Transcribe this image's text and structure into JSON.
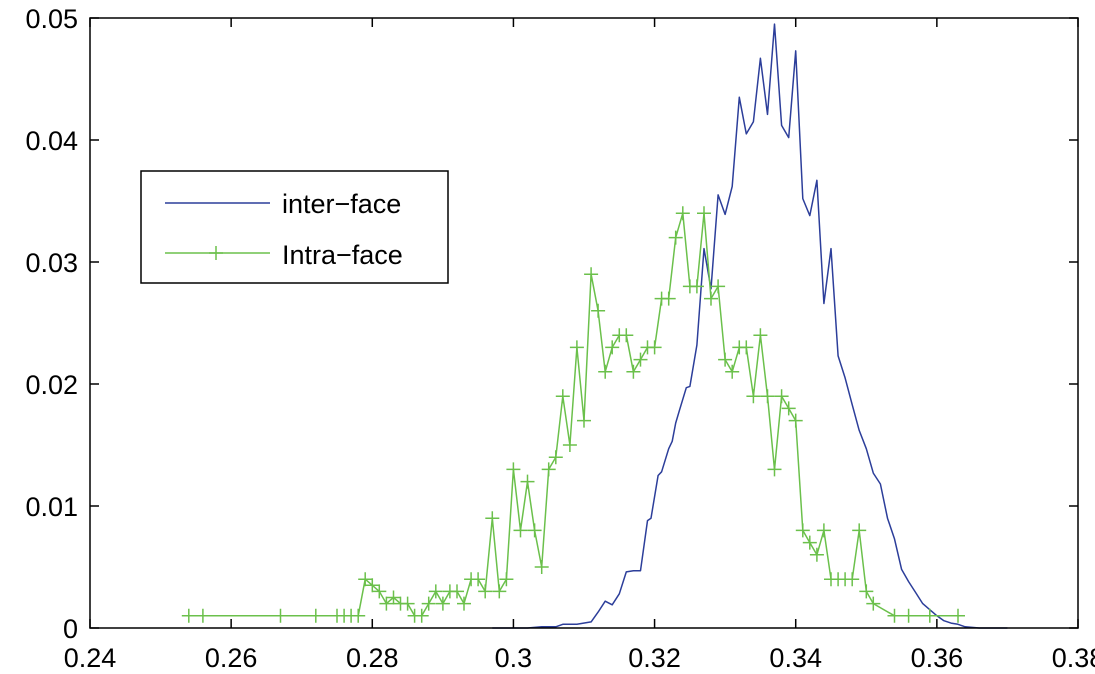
{
  "chart_data": {
    "type": "line",
    "title": "",
    "xlabel": "",
    "ylabel": "",
    "xlim": [
      0.24,
      0.38
    ],
    "ylim": [
      0,
      0.05
    ],
    "x_ticks": [
      "0.24",
      "0.26",
      "0.28",
      "0.3",
      "0.32",
      "0.34",
      "0.36",
      "0.38"
    ],
    "y_ticks": [
      "0",
      "0.01",
      "0.02",
      "0.03",
      "0.04",
      "0.05"
    ],
    "grid": false,
    "legend_placement": "left",
    "series": [
      {
        "name": "inter−face",
        "color": "#2c3e9a",
        "marker": "none",
        "points": [
          [
            0.297,
            0
          ],
          [
            0.302,
            0
          ],
          [
            0.304,
            0.0001
          ],
          [
            0.306,
            0.0001
          ],
          [
            0.307,
            0.0003
          ],
          [
            0.309,
            0.0003
          ],
          [
            0.311,
            0.0005
          ],
          [
            0.312,
            0.0013
          ],
          [
            0.313,
            0.0022
          ],
          [
            0.314,
            0.0019
          ],
          [
            0.315,
            0.0028
          ],
          [
            0.316,
            0.0046
          ],
          [
            0.317,
            0.0047
          ],
          [
            0.318,
            0.0047
          ],
          [
            0.319,
            0.0088
          ],
          [
            0.3195,
            0.009
          ],
          [
            0.3205,
            0.0125
          ],
          [
            0.321,
            0.0128
          ],
          [
            0.322,
            0.0147
          ],
          [
            0.3225,
            0.0153
          ],
          [
            0.323,
            0.0168
          ],
          [
            0.3235,
            0.0178
          ],
          [
            0.3245,
            0.0197
          ],
          [
            0.325,
            0.0198
          ],
          [
            0.326,
            0.0232
          ],
          [
            0.327,
            0.0311
          ],
          [
            0.328,
            0.0278
          ],
          [
            0.329,
            0.0355
          ],
          [
            0.33,
            0.0339
          ],
          [
            0.331,
            0.0362
          ],
          [
            0.332,
            0.0435
          ],
          [
            0.333,
            0.0405
          ],
          [
            0.334,
            0.0415
          ],
          [
            0.335,
            0.0467
          ],
          [
            0.336,
            0.0421
          ],
          [
            0.337,
            0.0495
          ],
          [
            0.338,
            0.0412
          ],
          [
            0.339,
            0.0402
          ],
          [
            0.34,
            0.0473
          ],
          [
            0.341,
            0.0352
          ],
          [
            0.342,
            0.0338
          ],
          [
            0.343,
            0.0367
          ],
          [
            0.344,
            0.0266
          ],
          [
            0.345,
            0.0311
          ],
          [
            0.346,
            0.0223
          ],
          [
            0.347,
            0.0205
          ],
          [
            0.348,
            0.0183
          ],
          [
            0.349,
            0.0162
          ],
          [
            0.35,
            0.0147
          ],
          [
            0.351,
            0.0127
          ],
          [
            0.352,
            0.0118
          ],
          [
            0.353,
            0.009
          ],
          [
            0.354,
            0.0073
          ],
          [
            0.355,
            0.0048
          ],
          [
            0.356,
            0.0038
          ],
          [
            0.357,
            0.0029
          ],
          [
            0.358,
            0.002
          ],
          [
            0.359,
            0.0015
          ],
          [
            0.36,
            0.001
          ],
          [
            0.361,
            0.0006
          ],
          [
            0.362,
            0.0004
          ],
          [
            0.363,
            0.0003
          ],
          [
            0.364,
            0.0001
          ],
          [
            0.366,
            0
          ],
          [
            0.37,
            0
          ]
        ]
      },
      {
        "name": "Intra−face",
        "color": "#6bc04b",
        "marker": "+",
        "points": [
          [
            0.254,
            0.001
          ],
          [
            0.256,
            0.001
          ],
          [
            0.267,
            0.001
          ],
          [
            0.272,
            0.001
          ],
          [
            0.275,
            0.001
          ],
          [
            0.276,
            0.001
          ],
          [
            0.277,
            0.001
          ],
          [
            0.278,
            0.001
          ],
          [
            0.279,
            0.004
          ],
          [
            0.28,
            0.0035
          ],
          [
            0.281,
            0.003
          ],
          [
            0.282,
            0.002
          ],
          [
            0.283,
            0.0025
          ],
          [
            0.284,
            0.002
          ],
          [
            0.285,
            0.002
          ],
          [
            0.286,
            0.001
          ],
          [
            0.287,
            0.001
          ],
          [
            0.288,
            0.002
          ],
          [
            0.289,
            0.003
          ],
          [
            0.29,
            0.002
          ],
          [
            0.291,
            0.003
          ],
          [
            0.292,
            0.003
          ],
          [
            0.293,
            0.002
          ],
          [
            0.294,
            0.004
          ],
          [
            0.295,
            0.004
          ],
          [
            0.296,
            0.003
          ],
          [
            0.297,
            0.009
          ],
          [
            0.298,
            0.003
          ],
          [
            0.299,
            0.004
          ],
          [
            0.3,
            0.013
          ],
          [
            0.301,
            0.008
          ],
          [
            0.302,
            0.012
          ],
          [
            0.303,
            0.008
          ],
          [
            0.304,
            0.005
          ],
          [
            0.305,
            0.013
          ],
          [
            0.306,
            0.014
          ],
          [
            0.307,
            0.019
          ],
          [
            0.308,
            0.015
          ],
          [
            0.309,
            0.023
          ],
          [
            0.31,
            0.017
          ],
          [
            0.311,
            0.029
          ],
          [
            0.312,
            0.026
          ],
          [
            0.313,
            0.021
          ],
          [
            0.314,
            0.023
          ],
          [
            0.315,
            0.024
          ],
          [
            0.316,
            0.024
          ],
          [
            0.317,
            0.021
          ],
          [
            0.318,
            0.022
          ],
          [
            0.319,
            0.023
          ],
          [
            0.32,
            0.023
          ],
          [
            0.321,
            0.027
          ],
          [
            0.322,
            0.027
          ],
          [
            0.323,
            0.032
          ],
          [
            0.324,
            0.034
          ],
          [
            0.325,
            0.028
          ],
          [
            0.326,
            0.028
          ],
          [
            0.327,
            0.034
          ],
          [
            0.328,
            0.027
          ],
          [
            0.329,
            0.028
          ],
          [
            0.33,
            0.022
          ],
          [
            0.331,
            0.021
          ],
          [
            0.332,
            0.023
          ],
          [
            0.333,
            0.023
          ],
          [
            0.334,
            0.019
          ],
          [
            0.335,
            0.024
          ],
          [
            0.336,
            0.019
          ],
          [
            0.337,
            0.013
          ],
          [
            0.338,
            0.019
          ],
          [
            0.339,
            0.018
          ],
          [
            0.34,
            0.017
          ],
          [
            0.341,
            0.008
          ],
          [
            0.342,
            0.007
          ],
          [
            0.343,
            0.006
          ],
          [
            0.344,
            0.008
          ],
          [
            0.345,
            0.004
          ],
          [
            0.346,
            0.004
          ],
          [
            0.347,
            0.004
          ],
          [
            0.348,
            0.004
          ],
          [
            0.349,
            0.008
          ],
          [
            0.35,
            0.003
          ],
          [
            0.351,
            0.002
          ],
          [
            0.354,
            0.001
          ],
          [
            0.356,
            0.001
          ],
          [
            0.359,
            0.001
          ],
          [
            0.363,
            0.001
          ]
        ]
      }
    ]
  }
}
